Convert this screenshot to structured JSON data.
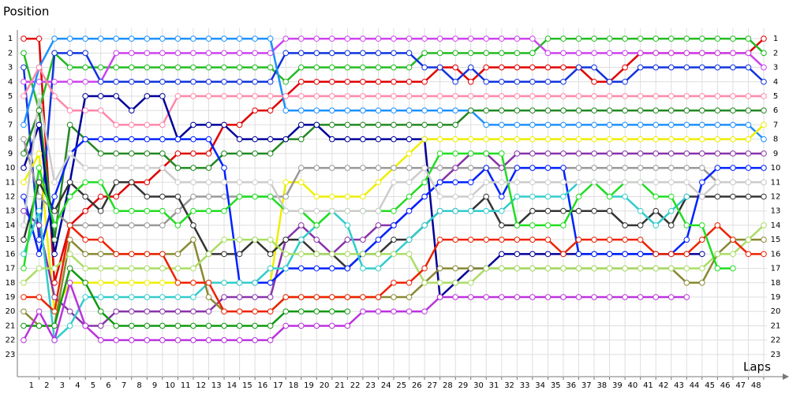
{
  "chart_data": {
    "type": "line",
    "y_label": "Position",
    "x_label": "Laps",
    "x": [
      0,
      1,
      2,
      3,
      4,
      5,
      6,
      7,
      8,
      9,
      10,
      11,
      12,
      13,
      14,
      15,
      16,
      17,
      18,
      19,
      20,
      21,
      22,
      23,
      24,
      25,
      26,
      27,
      28,
      29,
      30,
      31,
      32,
      33,
      34,
      35,
      36,
      37,
      38,
      39,
      40,
      41,
      42,
      43,
      44,
      45,
      46,
      47,
      48
    ],
    "xlim": [
      0,
      48
    ],
    "xticks": [
      1,
      2,
      3,
      4,
      5,
      6,
      7,
      8,
      9,
      10,
      11,
      12,
      13,
      14,
      15,
      16,
      17,
      18,
      19,
      20,
      21,
      22,
      23,
      24,
      25,
      26,
      27,
      28,
      29,
      30,
      31,
      32,
      33,
      34,
      35,
      36,
      37,
      38,
      39,
      40,
      41,
      42,
      43,
      44,
      45,
      46,
      47,
      48
    ],
    "ylim": [
      0.5,
      23.5
    ],
    "y_inverted": true,
    "yticks": [
      1,
      2,
      3,
      4,
      5,
      6,
      7,
      8,
      9,
      10,
      11,
      12,
      13,
      14,
      15,
      16,
      17,
      18,
      19,
      20,
      21,
      22,
      23
    ],
    "grid": true,
    "series": [
      {
        "color": "#e00000",
        "values": [
          1,
          1,
          18,
          14,
          13,
          12,
          12,
          11,
          11,
          10,
          9,
          9,
          9,
          7,
          7,
          6,
          6,
          5,
          4,
          4,
          4,
          4,
          4,
          4,
          4,
          4,
          4,
          3,
          3,
          4,
          3,
          3,
          3,
          3,
          3,
          3,
          3,
          4,
          4,
          3,
          2,
          2,
          2,
          2,
          2,
          2,
          2,
          2,
          1
        ]
      },
      {
        "color": "#22bb22",
        "values": [
          2,
          6,
          2,
          3,
          3,
          3,
          3,
          3,
          3,
          3,
          3,
          3,
          3,
          3,
          3,
          3,
          3,
          4,
          3,
          3,
          3,
          3,
          3,
          3,
          3,
          3,
          2,
          2,
          2,
          2,
          2,
          2,
          2,
          2,
          1,
          1,
          1,
          1,
          1,
          1,
          1,
          1,
          1,
          1,
          1,
          1,
          1,
          1,
          2
        ]
      },
      {
        "color": "#cc44ee",
        "values": [
          4,
          4,
          4,
          4,
          4,
          4,
          2,
          2,
          2,
          2,
          2,
          2,
          2,
          2,
          2,
          2,
          2,
          1,
          1,
          1,
          1,
          1,
          1,
          1,
          1,
          1,
          1,
          1,
          1,
          1,
          1,
          1,
          1,
          1,
          2,
          2,
          2,
          2,
          2,
          2,
          2,
          2,
          2,
          2,
          2,
          2,
          2,
          2,
          3
        ]
      },
      {
        "color": "#1133dd",
        "values": [
          3,
          15,
          2,
          2,
          2,
          4,
          4,
          4,
          4,
          4,
          4,
          4,
          4,
          4,
          4,
          4,
          4,
          2,
          2,
          2,
          2,
          2,
          2,
          2,
          2,
          2,
          3,
          3,
          4,
          3,
          4,
          4,
          4,
          4,
          4,
          4,
          3,
          3,
          4,
          4,
          3,
          3,
          3,
          3,
          3,
          3,
          3,
          3,
          4
        ]
      },
      {
        "color": "#1e90ff",
        "values": [
          7,
          3,
          1,
          1,
          1,
          1,
          1,
          1,
          1,
          1,
          1,
          1,
          1,
          1,
          1,
          1,
          1,
          6,
          6,
          6,
          6,
          6,
          6,
          6,
          6,
          6,
          6,
          6,
          6,
          6,
          7,
          7,
          7,
          7,
          7,
          7,
          7,
          7,
          7,
          7,
          7,
          7,
          7,
          7,
          7,
          7,
          7,
          7,
          8
        ]
      },
      {
        "color": "#ff88aa",
        "values": [
          5,
          3,
          5,
          6,
          6,
          6,
          7,
          7,
          7,
          7,
          5,
          5,
          5,
          5,
          5,
          5,
          5,
          5,
          5,
          5,
          5,
          5,
          5,
          5,
          5,
          5,
          5,
          5,
          5,
          5,
          5,
          5,
          5,
          5,
          5,
          5,
          5,
          5,
          5,
          5,
          5,
          5,
          5,
          5,
          5,
          5,
          5,
          5,
          5
        ]
      },
      {
        "color": "#228822",
        "values": [
          9,
          6,
          15,
          7,
          8,
          9,
          9,
          9,
          9,
          9,
          10,
          10,
          10,
          9,
          9,
          9,
          9,
          8,
          8,
          7,
          7,
          7,
          7,
          7,
          7,
          7,
          7,
          7,
          7,
          6,
          6,
          6,
          6,
          6,
          6,
          6,
          6,
          6,
          6,
          6,
          6,
          6,
          6,
          6,
          6,
          6,
          6,
          6,
          6
        ]
      },
      {
        "color": "#000099",
        "values": [
          10,
          7,
          16,
          11,
          5,
          5,
          5,
          6,
          5,
          5,
          8,
          7,
          7,
          7,
          8,
          8,
          8,
          8,
          7,
          7,
          8,
          8,
          8,
          8,
          8,
          8,
          8,
          19,
          18,
          17,
          17,
          16,
          16,
          16,
          16,
          16,
          16,
          16,
          16,
          16,
          16,
          16,
          16,
          16,
          16,
          null,
          null,
          null,
          null
        ]
      },
      {
        "color": "#eeee00",
        "values": [
          11,
          9,
          20,
          18,
          18,
          18,
          18,
          18,
          18,
          18,
          18,
          18,
          18,
          18,
          18,
          18,
          18,
          11,
          11,
          12,
          12,
          12,
          12,
          11,
          10,
          9,
          8,
          8,
          8,
          8,
          8,
          8,
          8,
          8,
          8,
          8,
          8,
          8,
          8,
          8,
          8,
          8,
          8,
          8,
          8,
          8,
          8,
          8,
          7
        ]
      },
      {
        "color": "#999999",
        "values": [
          8,
          12,
          13,
          14,
          14,
          14,
          14,
          14,
          14,
          14,
          13,
          12,
          12,
          12,
          12,
          12,
          12,
          12,
          10,
          10,
          10,
          10,
          10,
          10,
          10,
          10,
          10,
          10,
          10,
          10,
          10,
          10,
          10,
          10,
          10,
          10,
          10,
          10,
          10,
          10,
          10,
          10,
          10,
          10,
          10,
          11,
          11,
          11,
          11
        ]
      },
      {
        "color": "#8833aa",
        "values": [
          13,
          14,
          19,
          20,
          21,
          21,
          20,
          20,
          20,
          20,
          20,
          20,
          20,
          19,
          19,
          19,
          19,
          15,
          14,
          15,
          16,
          15,
          15,
          14,
          14,
          13,
          12,
          11,
          10,
          9,
          9,
          10,
          9,
          9,
          9,
          9,
          9,
          9,
          9,
          9,
          9,
          9,
          9,
          9,
          9,
          9,
          9,
          9,
          9
        ]
      },
      {
        "color": "#333333",
        "values": [
          15,
          11,
          13,
          11,
          12,
          13,
          11,
          11,
          12,
          12,
          12,
          14,
          16,
          16,
          16,
          15,
          16,
          15,
          15,
          16,
          16,
          17,
          16,
          16,
          15,
          15,
          14,
          13,
          13,
          13,
          12,
          14,
          14,
          13,
          13,
          13,
          13,
          13,
          13,
          14,
          14,
          13,
          14,
          12,
          12,
          12,
          12,
          12,
          12
        ]
      },
      {
        "color": "#0022ff",
        "values": [
          12,
          16,
          12,
          9,
          8,
          8,
          8,
          8,
          8,
          8,
          8,
          8,
          8,
          10,
          18,
          18,
          18,
          17,
          17,
          17,
          17,
          17,
          16,
          15,
          14,
          13,
          12,
          11,
          11,
          11,
          10,
          12,
          10,
          10,
          10,
          10,
          16,
          16,
          16,
          16,
          16,
          16,
          16,
          15,
          11,
          10,
          10,
          10,
          10
        ]
      },
      {
        "color": "#33cccc",
        "values": [
          16,
          13,
          22,
          21,
          19,
          19,
          19,
          19,
          19,
          19,
          19,
          19,
          18,
          18,
          18,
          18,
          17,
          17,
          15,
          14,
          13,
          14,
          17,
          17,
          16,
          15,
          14,
          13,
          13,
          13,
          13,
          13,
          12,
          12,
          12,
          12,
          11,
          11,
          12,
          12,
          13,
          14,
          13,
          12,
          null,
          null,
          null,
          null,
          null
        ]
      },
      {
        "color": "#888833",
        "values": [
          20,
          21,
          21,
          15,
          16,
          16,
          16,
          16,
          16,
          16,
          16,
          15,
          19,
          20,
          20,
          20,
          20,
          19,
          19,
          19,
          19,
          19,
          19,
          19,
          19,
          19,
          18,
          17,
          17,
          17,
          17,
          17,
          17,
          17,
          17,
          17,
          17,
          17,
          17,
          17,
          17,
          17,
          17,
          18,
          18,
          16,
          15,
          15,
          15
        ]
      },
      {
        "color": "#aadd66",
        "values": [
          18,
          17,
          17,
          16,
          17,
          17,
          17,
          17,
          17,
          17,
          17,
          17,
          16,
          15,
          15,
          15,
          15,
          16,
          16,
          16,
          16,
          16,
          16,
          16,
          16,
          16,
          18,
          18,
          18,
          18,
          17,
          17,
          17,
          17,
          17,
          17,
          17,
          17,
          17,
          17,
          17,
          17,
          17,
          17,
          17,
          16,
          16,
          15,
          14
        ]
      },
      {
        "color": "#ee2200",
        "values": [
          19,
          19,
          20,
          14,
          15,
          15,
          16,
          16,
          16,
          16,
          18,
          18,
          18,
          20,
          20,
          20,
          20,
          19,
          19,
          19,
          19,
          19,
          19,
          19,
          18,
          18,
          17,
          15,
          15,
          15,
          15,
          15,
          15,
          15,
          15,
          16,
          15,
          15,
          15,
          15,
          15,
          16,
          16,
          16,
          15,
          14,
          15,
          16,
          16
        ]
      },
      {
        "color": "#119911",
        "values": [
          21,
          21,
          21,
          17,
          18,
          20,
          21,
          21,
          21,
          21,
          21,
          21,
          21,
          21,
          21,
          21,
          21,
          20,
          20,
          20,
          20,
          20,
          null,
          null,
          null,
          null,
          null,
          null,
          null,
          null,
          null,
          null,
          null,
          null,
          null,
          null,
          null,
          null,
          null,
          null,
          null,
          null,
          null,
          null,
          null,
          null,
          null,
          null,
          null
        ]
      },
      {
        "color": "#22dd22",
        "values": [
          17,
          10,
          14,
          12,
          11,
          11,
          13,
          13,
          13,
          13,
          14,
          13,
          13,
          13,
          12,
          12,
          12,
          13,
          13,
          14,
          13,
          13,
          13,
          13,
          13,
          12,
          11,
          9,
          9,
          9,
          9,
          9,
          14,
          14,
          14,
          14,
          12,
          11,
          12,
          11,
          11,
          12,
          12,
          14,
          14,
          17,
          17,
          null,
          null
        ]
      },
      {
        "color": "#bb33dd",
        "values": [
          22,
          20,
          22,
          18,
          21,
          22,
          22,
          22,
          22,
          22,
          22,
          22,
          22,
          22,
          22,
          22,
          22,
          21,
          21,
          21,
          21,
          21,
          20,
          20,
          20,
          20,
          20,
          19,
          19,
          19,
          19,
          19,
          19,
          19,
          19,
          19,
          19,
          19,
          19,
          19,
          19,
          19,
          19,
          19,
          null,
          null,
          null,
          null,
          null
        ]
      },
      {
        "color": "#cccccc",
        "values": [
          14,
          5,
          11,
          9,
          10,
          10,
          10,
          10,
          10,
          10,
          11,
          11,
          11,
          11,
          11,
          11,
          11,
          13,
          13,
          13,
          13,
          13,
          13,
          13,
          11,
          11,
          10,
          12,
          12,
          12,
          11,
          11,
          11,
          11,
          11,
          11,
          11,
          11,
          11,
          11,
          11,
          11,
          11,
          11,
          12,
          11,
          11,
          11,
          11
        ]
      }
    ]
  }
}
